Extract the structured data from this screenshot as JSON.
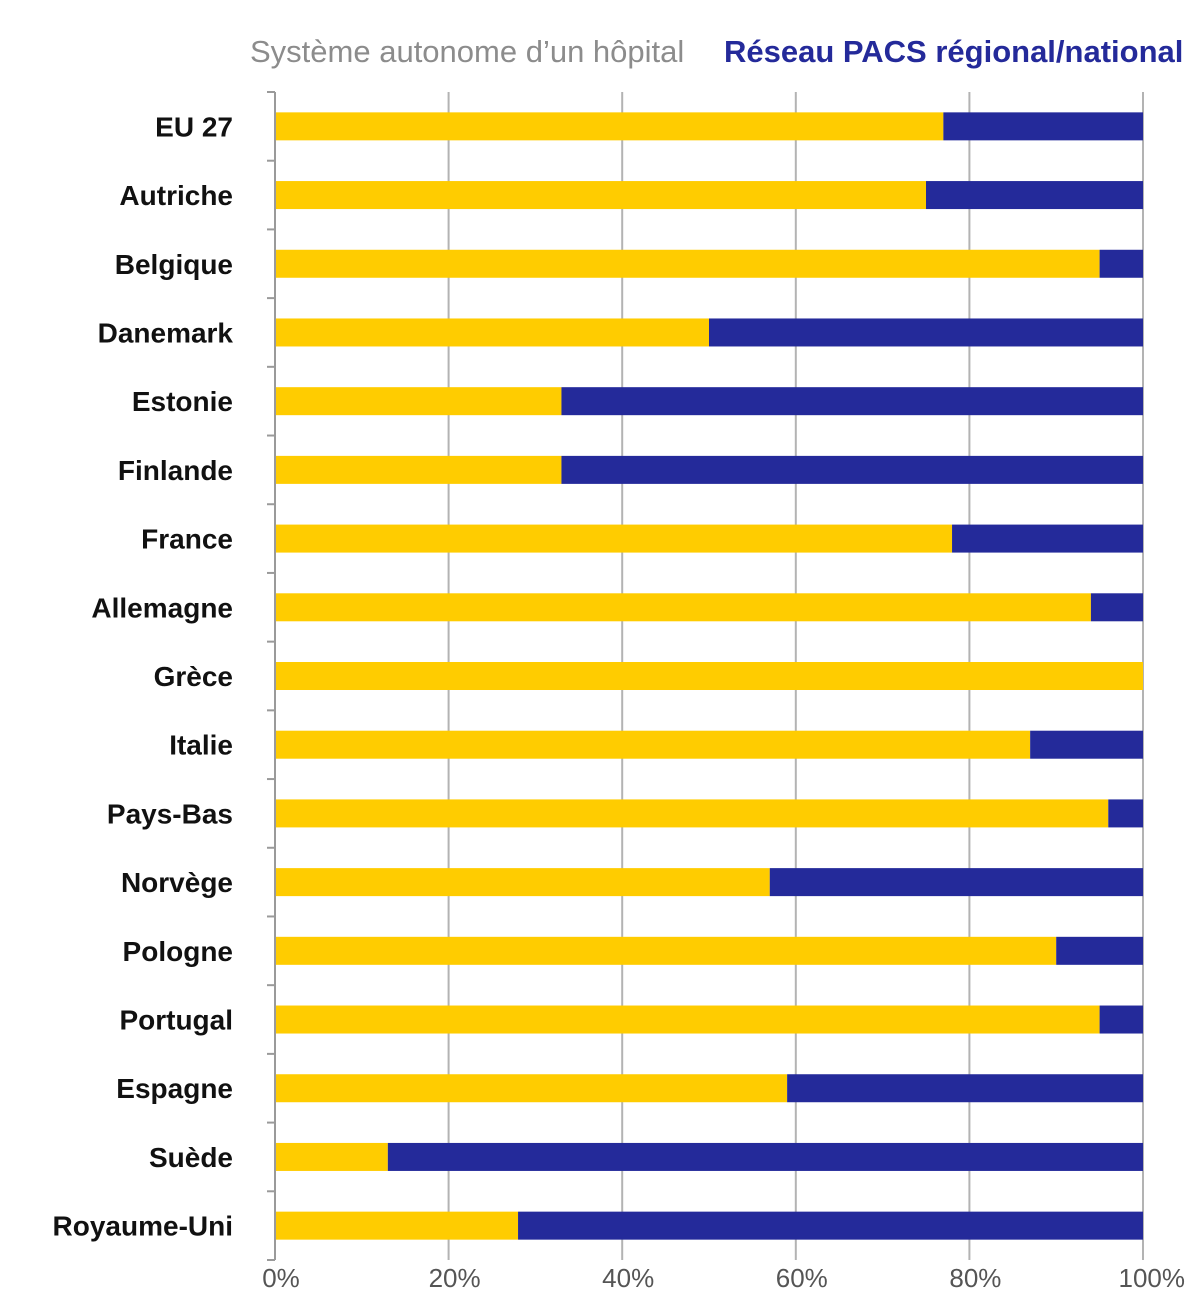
{
  "chart_data": {
    "type": "bar",
    "orientation": "horizontal",
    "stacked": true,
    "percent_stacked": true,
    "categories": [
      "EU 27",
      "Autriche",
      "Belgique",
      "Danemark",
      "Estonie",
      "Finlande",
      "France",
      "Allemagne",
      "Grèce",
      "Italie",
      "Pays-Bas",
      "Norvège",
      "Pologne",
      "Portugal",
      "Espagne",
      "Suède",
      "Royaume-Uni"
    ],
    "series": [
      {
        "name": "Système autonome d’un hôpital",
        "color": "#FFCC00",
        "values": [
          77,
          75,
          95,
          50,
          33,
          33,
          78,
          94,
          100,
          87,
          96,
          57,
          90,
          95,
          59,
          13,
          28
        ]
      },
      {
        "name": "Réseau PACS régional/national",
        "color": "#242A9A",
        "values": [
          23,
          25,
          5,
          50,
          67,
          67,
          22,
          6,
          0,
          13,
          4,
          43,
          10,
          5,
          41,
          87,
          72
        ]
      }
    ],
    "xlim": [
      0,
      100
    ],
    "xticks": [
      0,
      20,
      40,
      60,
      80,
      100
    ],
    "xtick_labels": [
      "0%",
      "20%",
      "40%",
      "60%",
      "80%",
      "100%"
    ],
    "grid": "vertical",
    "legend_position": "top"
  }
}
